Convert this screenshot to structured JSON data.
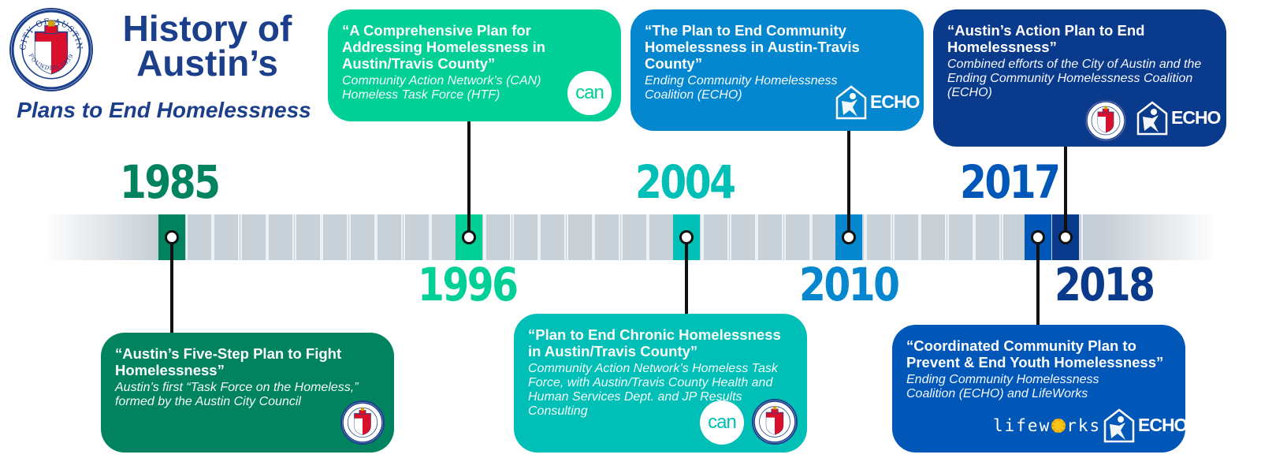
{
  "header": {
    "title_line1": "History of",
    "title_line2": "Austin’s",
    "subtitle": "Plans to End Homelessness"
  },
  "colors": {
    "y1985": "#00835e",
    "y1996": "#00cf96",
    "y2004": "#00bfb7",
    "y2010": "#0487cf",
    "y2017": "#0057b8",
    "y2018": "#0a3a8c",
    "track": "#c5ced5",
    "title_blue": "#1b3f8b"
  },
  "timeline": {
    "events": [
      {
        "year": "1985",
        "title": "“Austin’s Five-Step Plan to Fight Homelessness”",
        "description": "Austin’s first “Task Force on the Homeless,” formed by the Austin City Council",
        "logos": [
          "city-of-austin-seal"
        ]
      },
      {
        "year": "1996",
        "title": "“A Comprehensive Plan for Addressing Homelessness in Austin/Travis County”",
        "description": "Community Action Network’s (CAN) Homeless Task Force (HTF)",
        "logos": [
          "can-logo"
        ]
      },
      {
        "year": "2004",
        "title": "“Plan to End Chronic Homelessness in Austin/Travis County”",
        "description": "Community Action Network’s Homeless Task Force, with Austin/Travis County Health and Human Services Dept. and JP Results Consulting",
        "logos": [
          "can-logo",
          "city-of-austin-seal"
        ]
      },
      {
        "year": "2010",
        "title": "“The Plan to End Community Homelessness in Austin-Travis County”",
        "description": "Ending Community Homelessness Coalition (ECHO)",
        "logos": [
          "echo-logo"
        ]
      },
      {
        "year": "2017",
        "title": "“Coordinated Community Plan to Prevent & End Youth Homelessness”",
        "description": "Ending Community Homelessness Coalition (ECHO) and LifeWorks",
        "logos": [
          "lifeworks-logo",
          "echo-logo"
        ]
      },
      {
        "year": "2018",
        "title": "“Austin’s Action Plan to End Homelessness”",
        "description": "Combined efforts of the City of Austin and the Ending Community Homelessness Coalition (ECHO)",
        "logos": [
          "city-of-austin-seal",
          "echo-logo"
        ]
      }
    ]
  },
  "logos": {
    "can_text": "can",
    "echo_text": "ECHO",
    "lifeworks_before": "lifew",
    "lifeworks_after": "rks",
    "seal_top_text": "CITY OF AUSTIN",
    "seal_bottom_text": "FOUNDED 1839"
  }
}
